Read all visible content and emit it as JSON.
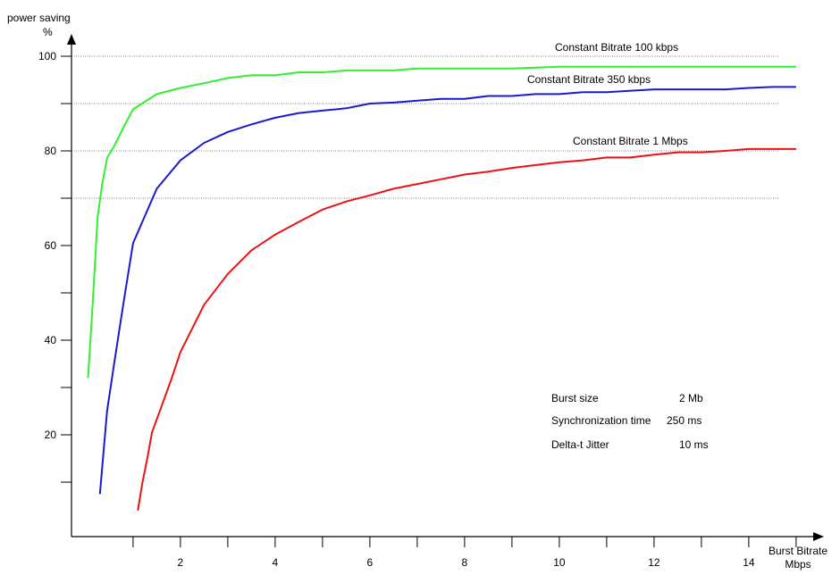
{
  "chart_data": {
    "type": "line",
    "title": "",
    "ylabel": "power saving",
    "yunit": "%",
    "xlabel": "Burst Bitrate",
    "xunit": "Mbps",
    "xlim": [
      -0.3,
      15
    ],
    "ylim": [
      -5,
      105
    ],
    "x_ticks": [
      2,
      4,
      6,
      8,
      10,
      12,
      14
    ],
    "y_ticks": [
      20,
      40,
      60,
      80,
      100
    ],
    "gridlines_y": [
      100,
      90,
      80,
      70
    ],
    "series": [
      {
        "name": "Constant Bitrate 100 kbps",
        "color": "#33ee33",
        "x": [
          0.05,
          0.15,
          0.25,
          0.35,
          0.45,
          0.6,
          0.8,
          1.0,
          1.5,
          2.0,
          2.5,
          3.0,
          3.5,
          4.0,
          4.5,
          5.0,
          5.5,
          6.0,
          6.5,
          7.0,
          8.0,
          9.0,
          10.0,
          11.0,
          12.0,
          13.0,
          14.0,
          15.0
        ],
        "y": [
          32,
          48,
          66,
          73,
          78.5,
          81,
          85,
          88.8,
          92,
          93.3,
          94.3,
          95.4,
          96,
          96,
          96.6,
          96.6,
          97,
          97,
          97,
          97.4,
          97.4,
          97.4,
          97.8,
          97.8,
          97.8,
          97.8,
          97.8,
          97.8
        ]
      },
      {
        "name": "Constant Bitrate 350 kbps",
        "color": "#1a1acc",
        "x": [
          0.3,
          0.45,
          0.6,
          0.8,
          1.0,
          1.5,
          2.0,
          2.5,
          3.0,
          3.5,
          4.0,
          4.5,
          5.0,
          5.5,
          6.0,
          6.5,
          7.0,
          7.5,
          8.0,
          8.5,
          9.0,
          9.5,
          10.0,
          10.5,
          11.0,
          12.0,
          13.0,
          13.5,
          14.0,
          14.5,
          15.0
        ],
        "y": [
          7.5,
          25,
          35,
          48,
          60.5,
          72,
          78,
          81.7,
          84,
          85.6,
          87,
          88,
          88.5,
          89,
          90,
          90.2,
          90.6,
          91,
          91,
          91.6,
          91.6,
          92,
          92,
          92.4,
          92.4,
          93,
          93,
          93,
          93.3,
          93.5,
          93.5
        ]
      },
      {
        "name": "Constant Bitrate 1 Mbps",
        "color": "#ee1111",
        "x": [
          1.1,
          1.2,
          1.3,
          1.4,
          1.6,
          1.8,
          2.0,
          2.5,
          3.0,
          3.5,
          4.0,
          4.5,
          5.0,
          5.5,
          6.0,
          6.5,
          7.0,
          7.5,
          8.0,
          8.5,
          9.0,
          9.5,
          10.0,
          10.5,
          11.0,
          11.5,
          12.0,
          12.5,
          13.0,
          13.5,
          14.0,
          14.5,
          15.0
        ],
        "y": [
          4,
          10,
          15,
          20.5,
          26,
          31.5,
          37.5,
          47.5,
          54,
          59,
          62.3,
          65,
          67.6,
          69.3,
          70.6,
          72,
          73,
          74,
          75,
          75.6,
          76.4,
          77,
          77.6,
          78,
          78.6,
          78.6,
          79.2,
          79.7,
          79.7,
          80,
          80.4,
          80.4,
          80.4
        ]
      }
    ],
    "annotations": {
      "burst_size_label": "Burst size",
      "burst_size_value": "2 Mb",
      "sync_time_label": "Synchronization time",
      "sync_time_value": "250 ms",
      "jitter_label": "Delta-t Jitter",
      "jitter_value": "10 ms"
    },
    "grid": "horizontal dotted lines",
    "legend": "inline labels above curves"
  }
}
